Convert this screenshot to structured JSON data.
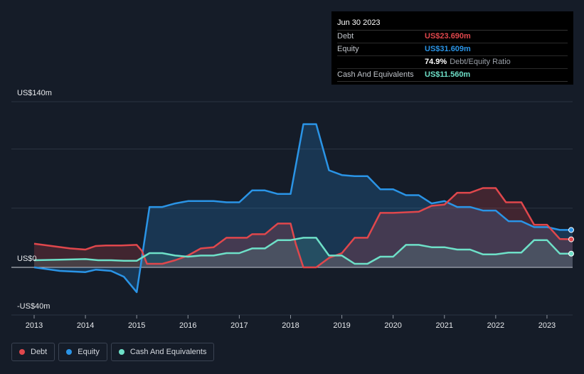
{
  "tooltip": {
    "date": "Jun 30 2023",
    "debt_label": "Debt",
    "debt_value": "US$23.690m",
    "equity_label": "Equity",
    "equity_value": "US$31.609m",
    "ratio_value": "74.9%",
    "ratio_label": "Debt/Equity Ratio",
    "cash_label": "Cash And Equivalents",
    "cash_value": "US$11.560m"
  },
  "legend": {
    "debt": "Debt",
    "equity": "Equity",
    "cash": "Cash And Equivalents"
  },
  "colors": {
    "debt": "#e0474c",
    "equity": "#2a94e6",
    "cash": "#6ee0c8",
    "background": "#151c28"
  },
  "chart_data": {
    "type": "area",
    "y_tick_labels": [
      "US$140m",
      "US$0",
      "-US$40m"
    ],
    "ylim": [
      -40,
      140
    ],
    "xlim": [
      2013.0,
      2023.5
    ],
    "x_ticks": [
      "2013",
      "2014",
      "2015",
      "2016",
      "2017",
      "2018",
      "2019",
      "2020",
      "2021",
      "2022",
      "2023"
    ],
    "series": [
      {
        "name": "Debt",
        "points": [
          [
            2013.0,
            20
          ],
          [
            2013.7,
            16
          ],
          [
            2014.0,
            15
          ],
          [
            2014.2,
            18
          ],
          [
            2014.4,
            18.5
          ],
          [
            2014.7,
            18.5
          ],
          [
            2015.0,
            19
          ],
          [
            2015.1,
            14
          ],
          [
            2015.2,
            3
          ],
          [
            2015.5,
            3
          ],
          [
            2015.75,
            6
          ],
          [
            2016.0,
            10
          ],
          [
            2016.25,
            16
          ],
          [
            2016.5,
            17
          ],
          [
            2016.75,
            25
          ],
          [
            2017.0,
            25
          ],
          [
            2017.15,
            25
          ],
          [
            2017.25,
            28
          ],
          [
            2017.5,
            28
          ],
          [
            2017.75,
            37
          ],
          [
            2018.0,
            37
          ],
          [
            2018.1,
            20
          ],
          [
            2018.25,
            0
          ],
          [
            2018.5,
            0
          ],
          [
            2018.75,
            8
          ],
          [
            2019.0,
            12
          ],
          [
            2019.25,
            25
          ],
          [
            2019.5,
            25
          ],
          [
            2019.75,
            46
          ],
          [
            2020.0,
            46
          ],
          [
            2020.5,
            47
          ],
          [
            2020.75,
            52
          ],
          [
            2021.0,
            53
          ],
          [
            2021.25,
            63
          ],
          [
            2021.5,
            63
          ],
          [
            2021.75,
            67
          ],
          [
            2022.0,
            67
          ],
          [
            2022.2,
            55
          ],
          [
            2022.5,
            55
          ],
          [
            2022.75,
            36
          ],
          [
            2023.0,
            36
          ],
          [
            2023.25,
            24
          ],
          [
            2023.5,
            23.69
          ]
        ]
      },
      {
        "name": "Equity",
        "points": [
          [
            2013.0,
            0
          ],
          [
            2013.5,
            -3
          ],
          [
            2014.0,
            -4
          ],
          [
            2014.2,
            -2
          ],
          [
            2014.5,
            -3
          ],
          [
            2014.75,
            -8
          ],
          [
            2015.0,
            -21
          ],
          [
            2015.25,
            51
          ],
          [
            2015.5,
            51
          ],
          [
            2015.75,
            54
          ],
          [
            2016.0,
            56
          ],
          [
            2016.5,
            56
          ],
          [
            2016.75,
            55
          ],
          [
            2017.0,
            55
          ],
          [
            2017.25,
            65
          ],
          [
            2017.5,
            65
          ],
          [
            2017.75,
            62
          ],
          [
            2018.0,
            62
          ],
          [
            2018.25,
            121
          ],
          [
            2018.5,
            121
          ],
          [
            2018.75,
            82
          ],
          [
            2019.0,
            78
          ],
          [
            2019.25,
            77
          ],
          [
            2019.5,
            77
          ],
          [
            2019.75,
            66
          ],
          [
            2020.0,
            66
          ],
          [
            2020.25,
            61
          ],
          [
            2020.5,
            61
          ],
          [
            2020.75,
            54
          ],
          [
            2021.0,
            56
          ],
          [
            2021.25,
            51
          ],
          [
            2021.5,
            51
          ],
          [
            2021.75,
            48
          ],
          [
            2022.0,
            48
          ],
          [
            2022.25,
            39
          ],
          [
            2022.5,
            39
          ],
          [
            2022.75,
            34
          ],
          [
            2023.0,
            34
          ],
          [
            2023.25,
            31.6
          ],
          [
            2023.5,
            31.609
          ]
        ]
      },
      {
        "name": "Cash And Equivalents",
        "points": [
          [
            2013.0,
            6
          ],
          [
            2013.5,
            6.5
          ],
          [
            2014.0,
            7
          ],
          [
            2014.25,
            6
          ],
          [
            2014.5,
            6
          ],
          [
            2014.75,
            5.5
          ],
          [
            2015.0,
            5.5
          ],
          [
            2015.25,
            12
          ],
          [
            2015.5,
            12
          ],
          [
            2015.75,
            10
          ],
          [
            2016.0,
            9
          ],
          [
            2016.25,
            10
          ],
          [
            2016.5,
            10
          ],
          [
            2016.75,
            12
          ],
          [
            2017.0,
            12
          ],
          [
            2017.25,
            16
          ],
          [
            2017.5,
            16
          ],
          [
            2017.75,
            23
          ],
          [
            2018.0,
            23
          ],
          [
            2018.25,
            25
          ],
          [
            2018.5,
            25
          ],
          [
            2018.75,
            10
          ],
          [
            2019.0,
            10
          ],
          [
            2019.25,
            3
          ],
          [
            2019.5,
            3
          ],
          [
            2019.75,
            9
          ],
          [
            2020.0,
            9
          ],
          [
            2020.25,
            19
          ],
          [
            2020.5,
            19
          ],
          [
            2020.75,
            17
          ],
          [
            2021.0,
            17
          ],
          [
            2021.25,
            15
          ],
          [
            2021.5,
            15
          ],
          [
            2021.75,
            11
          ],
          [
            2022.0,
            11
          ],
          [
            2022.25,
            12.5
          ],
          [
            2022.5,
            12.5
          ],
          [
            2022.75,
            23
          ],
          [
            2023.0,
            23
          ],
          [
            2023.25,
            11.6
          ],
          [
            2023.5,
            11.56
          ]
        ]
      }
    ],
    "grid": true
  }
}
